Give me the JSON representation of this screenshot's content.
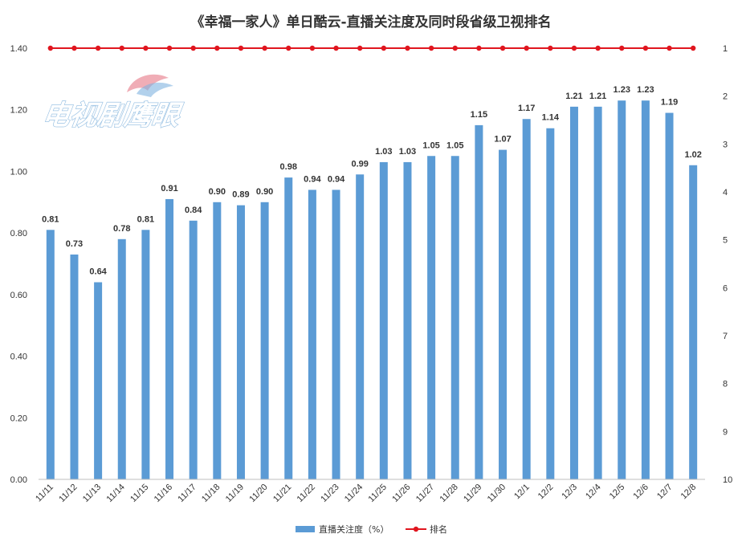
{
  "chart_data": {
    "type": "bar",
    "title": "《幸福一家人》单日酷云-直播关注度及同时段省级卫视排名",
    "categories": [
      "11/11",
      "11/12",
      "11/13",
      "11/14",
      "11/15",
      "11/16",
      "11/17",
      "11/18",
      "11/19",
      "11/20",
      "11/21",
      "11/22",
      "11/23",
      "11/24",
      "11/25",
      "11/26",
      "11/27",
      "11/28",
      "11/29",
      "11/30",
      "12/1",
      "12/2",
      "12/3",
      "12/4",
      "12/5",
      "12/6",
      "12/7",
      "12/8"
    ],
    "series": [
      {
        "name": "直播关注度（%）",
        "type": "bar",
        "axis": "left",
        "color": "#5b9bd5",
        "values": [
          0.81,
          0.73,
          0.64,
          0.78,
          0.81,
          0.91,
          0.84,
          0.9,
          0.89,
          0.9,
          0.98,
          0.94,
          0.94,
          0.99,
          1.03,
          1.03,
          1.05,
          1.05,
          1.15,
          1.07,
          1.17,
          1.14,
          1.21,
          1.21,
          1.23,
          1.23,
          1.19,
          1.02
        ],
        "labels": [
          "0.81",
          "0.73",
          "0.64",
          "0.78",
          "0.81",
          "0.91",
          "0.84",
          "0.90",
          "0.89",
          "0.90",
          "0.98",
          "0.94",
          "0.94",
          "0.99",
          "1.03",
          "1.03",
          "1.05",
          "1.05",
          "1.15",
          "1.07",
          "1.17",
          "1.14",
          "1.21",
          "1.21",
          "1.23",
          "1.23",
          "1.19",
          "1.02"
        ]
      },
      {
        "name": "排名",
        "type": "line",
        "axis": "right",
        "color": "#e0161f",
        "values": [
          1,
          1,
          1,
          1,
          1,
          1,
          1,
          1,
          1,
          1,
          1,
          1,
          1,
          1,
          1,
          1,
          1,
          1,
          1,
          1,
          1,
          1,
          1,
          1,
          1,
          1,
          1,
          1
        ]
      }
    ],
    "y_left": {
      "min": 0,
      "max": 1.4,
      "ticks": [
        "0.00",
        "0.20",
        "0.40",
        "0.60",
        "0.80",
        "1.00",
        "1.20",
        "1.40"
      ]
    },
    "y_right": {
      "min": 1,
      "max": 10,
      "inverted": true,
      "ticks": [
        "1",
        "2",
        "3",
        "4",
        "5",
        "6",
        "7",
        "8",
        "9",
        "10"
      ]
    },
    "grid": false,
    "legend_position": "bottom-center",
    "watermark_text": "电视剧鹰眼"
  }
}
